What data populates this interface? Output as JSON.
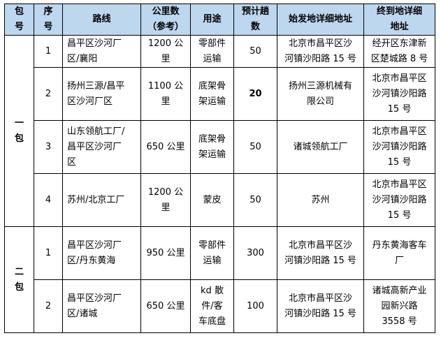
{
  "header": {
    "pkg": "包\n号",
    "seq": "序\n号",
    "route": "路线",
    "km": "公里数\n（参考）",
    "use": "用途",
    "trips": "预计趟\n数",
    "origin": "始发地详细地址",
    "dest": "终到地详细\n地址"
  },
  "packages": [
    {
      "label": "一\n包",
      "rows": [
        {
          "seq": "1",
          "route": "昌平区沙河厂\n区/襄阳",
          "km": "1200 公\n里",
          "use": "零部件\n运输",
          "trips": "50",
          "origin": "北京市昌平区沙\n河镇沙阳路 15 号",
          "dest": "经开区东津新\n区楚城路 8 号"
        },
        {
          "seq": "2",
          "route": "扬州三源/昌平\n区沙河厂区",
          "km": "1100 公\n里",
          "use": "底架骨\n架运输",
          "trips": "20",
          "origin": "扬州三源机械有\n限公司",
          "dest": "北京市昌平区\n沙河镇沙阳路\n15 号"
        },
        {
          "seq": "3",
          "route": "山东领航工厂/\n昌平区沙河厂\n区",
          "km": "650 公里",
          "use": "底架骨\n架运输",
          "trips": "50",
          "origin": "诸城领航工厂",
          "dest": "北京市昌平区\n沙河镇沙阳路\n15 号"
        },
        {
          "seq": "4",
          "route": "苏州/北京工厂",
          "km": "1200 公\n里",
          "use": "蒙皮",
          "trips": "50",
          "origin": "苏州",
          "dest": "北京市昌平区\n沙河镇沙阳路\n15 号"
        }
      ]
    },
    {
      "label": "二\n包",
      "rows": [
        {
          "seq": "1",
          "route": "昌平区沙河厂\n区/丹东黄海",
          "km": "950 公里",
          "use": "零部件\n运输",
          "trips": "300",
          "origin": "北京市昌平区沙\n河镇沙阳路 15 号",
          "dest": "丹东黄海客车\n厂"
        },
        {
          "seq": "2",
          "route": "昌平区沙河厂\n区/诸城",
          "km": "650 公里",
          "use": "kd 散\n件/客\n车底盘",
          "trips": "100",
          "origin": "北京市昌平区沙\n河镇沙阳路 15 号",
          "dest": "诸城高新产业\n园新兴路\n3558 号"
        }
      ]
    }
  ],
  "colors": {
    "header_bg": "#bdd7ee",
    "border": "#000000"
  }
}
